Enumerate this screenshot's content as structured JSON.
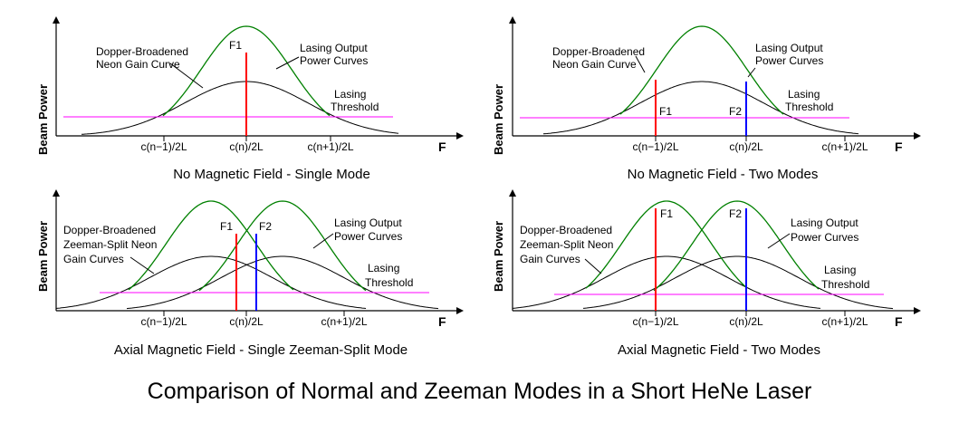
{
  "main_title": "Comparison of Normal and Zeeman Modes in a Short HeNe Laser",
  "axis": {
    "y_label": "Beam Power",
    "x_label": "F"
  },
  "colors": {
    "gain_curve": "#000000",
    "output_curve": "#008000",
    "threshold": "#ff00ff",
    "mode_f1": "#ff0000",
    "mode_f2": "#0000ff"
  },
  "panels": [
    {
      "caption": "No Magnetic Field - Single Mode",
      "ticks": [
        "c(n−1)/2L",
        "c(n)/2L",
        "c(n+1)/2L"
      ],
      "labels": {
        "gain": [
          "Dopper-Broadened",
          "Neon Gain Curve"
        ],
        "output": [
          "Lasing Output",
          "Power Curves"
        ],
        "threshold": [
          "Lasing",
          "Threshold"
        ]
      },
      "modes": [
        {
          "name": "F1",
          "color": "#ff0000"
        }
      ]
    },
    {
      "caption": "No Magnetic Field - Two Modes",
      "ticks": [
        "c(n−1)/2L",
        "c(n)/2L",
        "c(n+1)/2L"
      ],
      "labels": {
        "gain": [
          "Dopper-Broadened",
          "Neon Gain Curve"
        ],
        "output": [
          "Lasing Output",
          "Power Curves"
        ],
        "threshold": [
          "Lasing",
          "Threshold"
        ]
      },
      "modes": [
        {
          "name": "F1",
          "color": "#ff0000"
        },
        {
          "name": "F2",
          "color": "#0000ff"
        }
      ]
    },
    {
      "caption": "Axial Magnetic Field - Single Zeeman-Split Mode",
      "ticks": [
        "c(n−1)/2L",
        "c(n)/2L",
        "c(n+1)/2L"
      ],
      "labels": {
        "gain": [
          "Dopper-Broadened",
          "Zeeman-Split Neon",
          "Gain Curves"
        ],
        "output": [
          "Lasing Output",
          "Power Curves"
        ],
        "threshold": [
          "Lasing",
          "Threshold"
        ]
      },
      "modes": [
        {
          "name": "F1",
          "color": "#ff0000"
        },
        {
          "name": "F2",
          "color": "#0000ff"
        }
      ]
    },
    {
      "caption": "Axial Magnetic Field - Two Modes",
      "ticks": [
        "c(n−1)/2L",
        "c(n)/2L",
        "c(n+1)/2L"
      ],
      "labels": {
        "gain": [
          "Dopper-Broadened",
          "Zeeman-Split Neon",
          "Gain Curves"
        ],
        "output": [
          "Lasing Output",
          "Power Curves"
        ],
        "threshold": [
          "Lasing",
          "Threshold"
        ]
      },
      "modes": [
        {
          "name": "F1",
          "color": "#ff0000"
        },
        {
          "name": "F2",
          "color": "#0000ff"
        }
      ]
    }
  ]
}
